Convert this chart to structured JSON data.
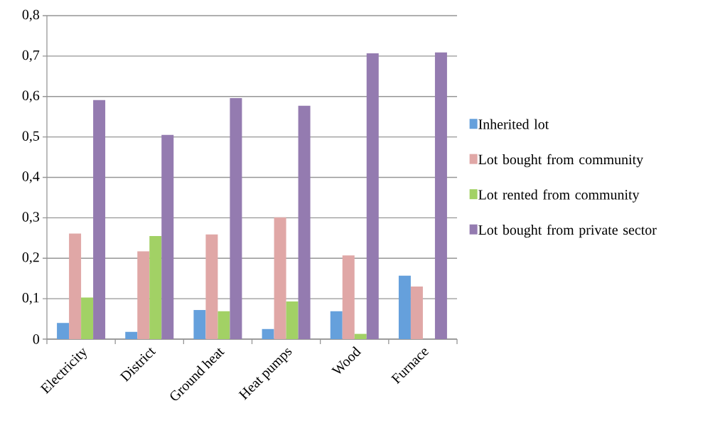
{
  "chart_data": {
    "type": "bar",
    "categories": [
      "Electricity",
      "District",
      "Ground heat",
      "Heat pumps",
      "Wood",
      "Furnace"
    ],
    "series": [
      {
        "name": "Inherited lot",
        "color": "#65a0dc",
        "values": [
          0.04,
          0.018,
          0.072,
          0.025,
          0.069,
          0.157
        ]
      },
      {
        "name": "Lot bought from community",
        "color": "#e0a7a6",
        "values": [
          0.261,
          0.217,
          0.259,
          0.301,
          0.207,
          0.13
        ]
      },
      {
        "name": "Lot rented from community",
        "color": "#a2d165",
        "values": [
          0.103,
          0.255,
          0.069,
          0.093,
          0.013,
          0
        ]
      },
      {
        "name": "Lot bought from private sector",
        "color": "#947bb0",
        "values": [
          0.591,
          0.505,
          0.596,
          0.577,
          0.707,
          0.709
        ]
      }
    ],
    "ylim": [
      0,
      0.8
    ],
    "yticks": [
      0,
      {
        "value": 0.1,
        "label": "0,1"
      },
      {
        "value": 0.2,
        "label": "0,2"
      },
      {
        "value": 0.3,
        "label": "0,3"
      },
      {
        "value": 0.4,
        "label": "0,4"
      },
      {
        "value": 0.5,
        "label": "0,5"
      },
      {
        "value": 0.6,
        "label": "0,6"
      },
      {
        "value": 0.7,
        "label": "0,7"
      },
      {
        "value": 0.8,
        "label": "0,8"
      }
    ],
    "grid": "y",
    "legend": "right"
  }
}
